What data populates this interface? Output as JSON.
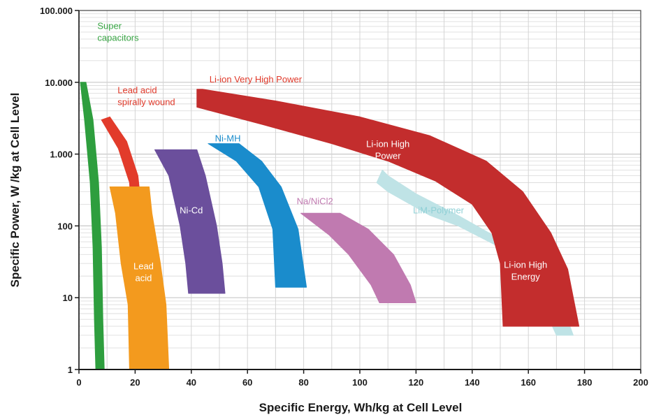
{
  "chart_data": {
    "type": "area",
    "xlabel": "Specific Energy, Wh/kg at Cell Level",
    "ylabel": "Specific Power, W  /kg at Cell Level",
    "xlim": [
      0,
      200
    ],
    "ylim": [
      1,
      100000
    ],
    "y_scale": "log",
    "grid": true,
    "x_ticks": [
      "0",
      "20",
      "40",
      "60",
      "80",
      "100",
      "120",
      "140",
      "160",
      "180",
      "200"
    ],
    "y_ticks": [
      {
        "value": 1,
        "label": "1"
      },
      {
        "value": 10,
        "label": "10"
      },
      {
        "value": 100,
        "label": "100"
      },
      {
        "value": 1000,
        "label": "1.000"
      },
      {
        "value": 10000,
        "label": "10.000"
      },
      {
        "value": 100000,
        "label": "100.000"
      }
    ],
    "regions": [
      {
        "name": "LiM-Polymer",
        "color": "#bfe3e6",
        "label_color": "#8fd0d6",
        "label": [
          "LiM-Polymer"
        ],
        "label_pos": [
          128,
          150
        ],
        "polygon": [
          [
            106,
            400
          ],
          [
            110,
            300
          ],
          [
            125,
            140
          ],
          [
            135,
            100
          ],
          [
            150,
            50
          ],
          [
            160,
            20
          ],
          [
            165,
            8
          ],
          [
            170,
            3
          ],
          [
            176,
            3
          ],
          [
            172,
            8
          ],
          [
            164,
            25
          ],
          [
            150,
            65
          ],
          [
            135,
            140
          ],
          [
            120,
            280
          ],
          [
            110,
            500
          ],
          [
            108,
            600
          ]
        ]
      },
      {
        "name": "Super capacitors",
        "color": "#2e9e3e",
        "label_color": "#3aa646",
        "label": [
          "Super",
          "capacitors"
        ],
        "label_pos": [
          14,
          55000
        ],
        "polygon": [
          [
            0.5,
            10000
          ],
          [
            2.5,
            10000
          ],
          [
            5,
            3000
          ],
          [
            7,
            400
          ],
          [
            8,
            50
          ],
          [
            8.5,
            5
          ],
          [
            9,
            1
          ],
          [
            6,
            1
          ],
          [
            5.5,
            5
          ],
          [
            5,
            50
          ],
          [
            4,
            400
          ],
          [
            2,
            3000
          ]
        ]
      },
      {
        "name": "Lead acid spirally wound",
        "color": "#e23b2b",
        "label_color": "#e0392a",
        "label": [
          "Lead acid",
          "spirally wound"
        ],
        "label_pos": [
          24,
          7000
        ],
        "polygon": [
          [
            8,
            3000
          ],
          [
            11,
            3300
          ],
          [
            17,
            1500
          ],
          [
            21,
            500
          ],
          [
            23,
            90
          ],
          [
            19,
            90
          ],
          [
            18,
            400
          ],
          [
            14,
            1200
          ]
        ]
      },
      {
        "name": "Lead acid",
        "color": "#f39a1e",
        "label_color": "#ffffff",
        "label": [
          "Lead",
          "acid"
        ],
        "label_pos": [
          23,
          25
        ],
        "polygon": [
          [
            11,
            350
          ],
          [
            25,
            350
          ],
          [
            26,
            150
          ],
          [
            29,
            30
          ],
          [
            31,
            8
          ],
          [
            32,
            1
          ],
          [
            18,
            1
          ],
          [
            17.5,
            8
          ],
          [
            15,
            30
          ],
          [
            13,
            150
          ]
        ]
      },
      {
        "name": "Ni-Cd",
        "color": "#6b4f9c",
        "label_color": "#ffffff",
        "label": [
          "Ni-Cd"
        ],
        "label_pos": [
          40,
          150
        ],
        "polygon": [
          [
            27,
            1150
          ],
          [
            42,
            1150
          ],
          [
            45,
            500
          ],
          [
            49,
            100
          ],
          [
            51,
            30
          ],
          [
            52,
            11.5
          ],
          [
            39,
            11.5
          ],
          [
            38,
            30
          ],
          [
            36,
            100
          ],
          [
            32,
            500
          ]
        ]
      },
      {
        "name": "Ni-MH",
        "color": "#1a8ccc",
        "label_color": "#1a8ccc",
        "label": [
          "Ni-MH"
        ],
        "label_pos": [
          53,
          1500
        ],
        "polygon": [
          [
            46,
            1400
          ],
          [
            57,
            1400
          ],
          [
            65,
            800
          ],
          [
            72,
            350
          ],
          [
            78,
            90
          ],
          [
            81,
            14
          ],
          [
            70,
            14
          ],
          [
            69,
            90
          ],
          [
            64,
            350
          ],
          [
            56,
            800
          ]
        ]
      },
      {
        "name": "Na/NiCl2",
        "color": "#c07ab0",
        "label_color": "#c07ab0",
        "label": [
          "Na/NiCl2"
        ],
        "label_pos": [
          84,
          200
        ],
        "polygon": [
          [
            79,
            150
          ],
          [
            93,
            150
          ],
          [
            103,
            90
          ],
          [
            112,
            40
          ],
          [
            118,
            15
          ],
          [
            120,
            8.5
          ],
          [
            107,
            8.5
          ],
          [
            104,
            15
          ],
          [
            96,
            40
          ],
          [
            89,
            75
          ]
        ]
      },
      {
        "name": "Li-ion Very High Power",
        "color": "#c32d2d",
        "label_color": "#e0392a",
        "label": [
          "Li-ion Very High Power"
        ],
        "label_pos": [
          63,
          10000
        ],
        "polygon": [
          [
            42,
            8000
          ],
          [
            44,
            8000
          ],
          [
            70,
            5500
          ],
          [
            100,
            3300
          ],
          [
            125,
            1800
          ],
          [
            145,
            800
          ],
          [
            158,
            300
          ],
          [
            168,
            80
          ],
          [
            174,
            25
          ],
          [
            178,
            4
          ],
          [
            151,
            4
          ],
          [
            150,
            30
          ],
          [
            147,
            80
          ],
          [
            140,
            200
          ],
          [
            127,
            420
          ],
          [
            110,
            800
          ],
          [
            90,
            1400
          ],
          [
            65,
            2600
          ],
          [
            42,
            4500
          ]
        ]
      },
      {
        "name": "Li-ion High Power",
        "color": "#c32d2d",
        "label_color": "#ffffff",
        "label": [
          "Li-ion High",
          "Power"
        ],
        "label_pos": [
          110,
          1250
        ],
        "polygon": []
      },
      {
        "name": "Li-ion High Energy",
        "color": "#c32d2d",
        "label_color": "#ffffff",
        "label": [
          "Li-ion High",
          "Energy"
        ],
        "label_pos": [
          159,
          26
        ],
        "polygon": []
      }
    ]
  }
}
